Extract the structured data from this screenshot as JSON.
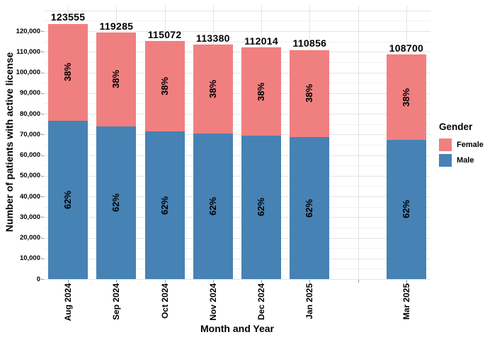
{
  "chart_data": {
    "type": "bar",
    "stacked": true,
    "title": "",
    "xlabel": "Month and Year",
    "ylabel": "Number of patients with active license",
    "ylim": [
      0,
      130000
    ],
    "ytick_labels": [
      "0",
      "10,000",
      "20,000",
      "30,000",
      "40,000",
      "50,000",
      "60,000",
      "70,000",
      "80,000",
      "90,000",
      "100,000",
      "110,000",
      "120,000"
    ],
    "grid": {
      "horizontal_major_step": 10000,
      "horizontal_minor_step": 5000,
      "vertical": "one light line per month slot"
    },
    "legend": {
      "title": "Gender",
      "position": "right",
      "entries": [
        {
          "label": "Female",
          "color": "#F08080"
        },
        {
          "label": "Male",
          "color": "#4682B4"
        }
      ]
    },
    "series": [
      {
        "name": "Female",
        "color": "#F08080",
        "pct_of_total": 38,
        "pct_label": "38%"
      },
      {
        "name": "Male",
        "color": "#4682B4",
        "pct_of_total": 62,
        "pct_label": "62%"
      }
    ],
    "bars": [
      {
        "label": "Aug 2024",
        "total": 123555,
        "total_label": "123555",
        "female_label": "38%",
        "male_label": "62%"
      },
      {
        "label": "Sep 2024",
        "total": 119285,
        "total_label": "119285",
        "female_label": "38%",
        "male_label": "62%"
      },
      {
        "label": "Oct 2024",
        "total": 115072,
        "total_label": "115072",
        "female_label": "38%",
        "male_label": "62%"
      },
      {
        "label": "Nov 2024",
        "total": 113380,
        "total_label": "113380",
        "female_label": "38%",
        "male_label": "62%"
      },
      {
        "label": "Dec 2024",
        "total": 112014,
        "total_label": "112014",
        "female_label": "38%",
        "male_label": "62%"
      },
      {
        "label": "Jan 2025",
        "total": 110856,
        "total_label": "110856",
        "female_label": "38%",
        "male_label": "62%"
      },
      {
        "label": "",
        "total": null,
        "total_label": "",
        "female_label": "",
        "male_label": ""
      },
      {
        "label": "Mar 2025",
        "total": 108700,
        "total_label": "108700",
        "female_label": "38%",
        "male_label": "62%"
      }
    ]
  }
}
